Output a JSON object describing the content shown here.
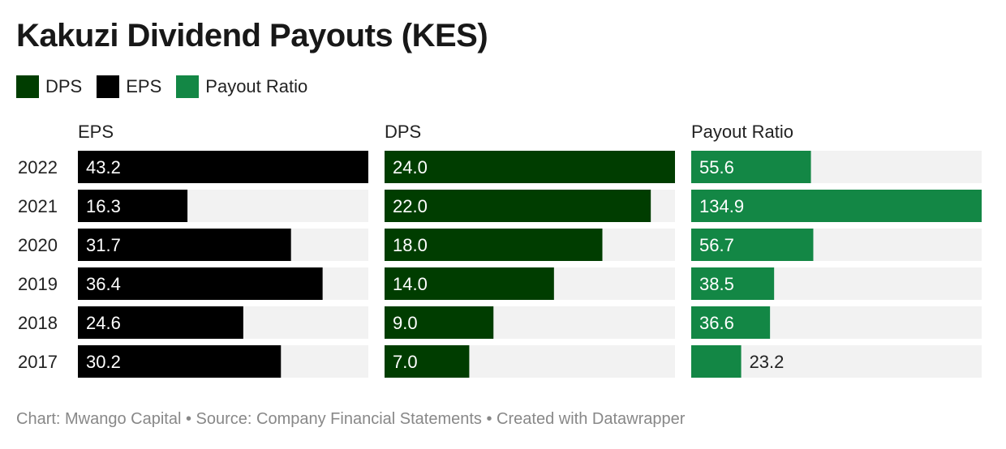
{
  "title": "Kakuzi Dividend Payouts (KES)",
  "legend": [
    {
      "label": "DPS",
      "color": "#003d00"
    },
    {
      "label": "EPS",
      "color": "#000000"
    },
    {
      "label": "Payout Ratio",
      "color": "#138745"
    }
  ],
  "footer": "Chart: Mwango Capital • Source: Company Financial Statements • Created with Datawrapper",
  "chart_data": {
    "type": "bar",
    "orientation": "horizontal",
    "categories": [
      "2022",
      "2021",
      "2020",
      "2019",
      "2018",
      "2017"
    ],
    "series": [
      {
        "name": "EPS",
        "color": "#000000",
        "values": [
          43.2,
          16.3,
          31.7,
          36.4,
          24.6,
          30.2
        ],
        "max": 43.2
      },
      {
        "name": "DPS",
        "color": "#003d00",
        "values": [
          24.0,
          22.0,
          18.0,
          14.0,
          9.0,
          7.0
        ],
        "max": 24.0
      },
      {
        "name": "Payout Ratio",
        "color": "#138745",
        "values": [
          55.6,
          134.9,
          56.7,
          38.5,
          36.6,
          23.2
        ],
        "max": 134.9
      }
    ],
    "value_labels": [
      [
        "43.2",
        "16.3",
        "31.7",
        "36.4",
        "24.6",
        "30.2"
      ],
      [
        "24.0",
        "22.0",
        "18.0",
        "14.0",
        "9.0",
        "7.0"
      ],
      [
        "55.6",
        "134.9",
        "56.7",
        "38.5",
        "36.6",
        "23.2"
      ]
    ],
    "background_color": "#f2f2f2",
    "grid": false
  }
}
